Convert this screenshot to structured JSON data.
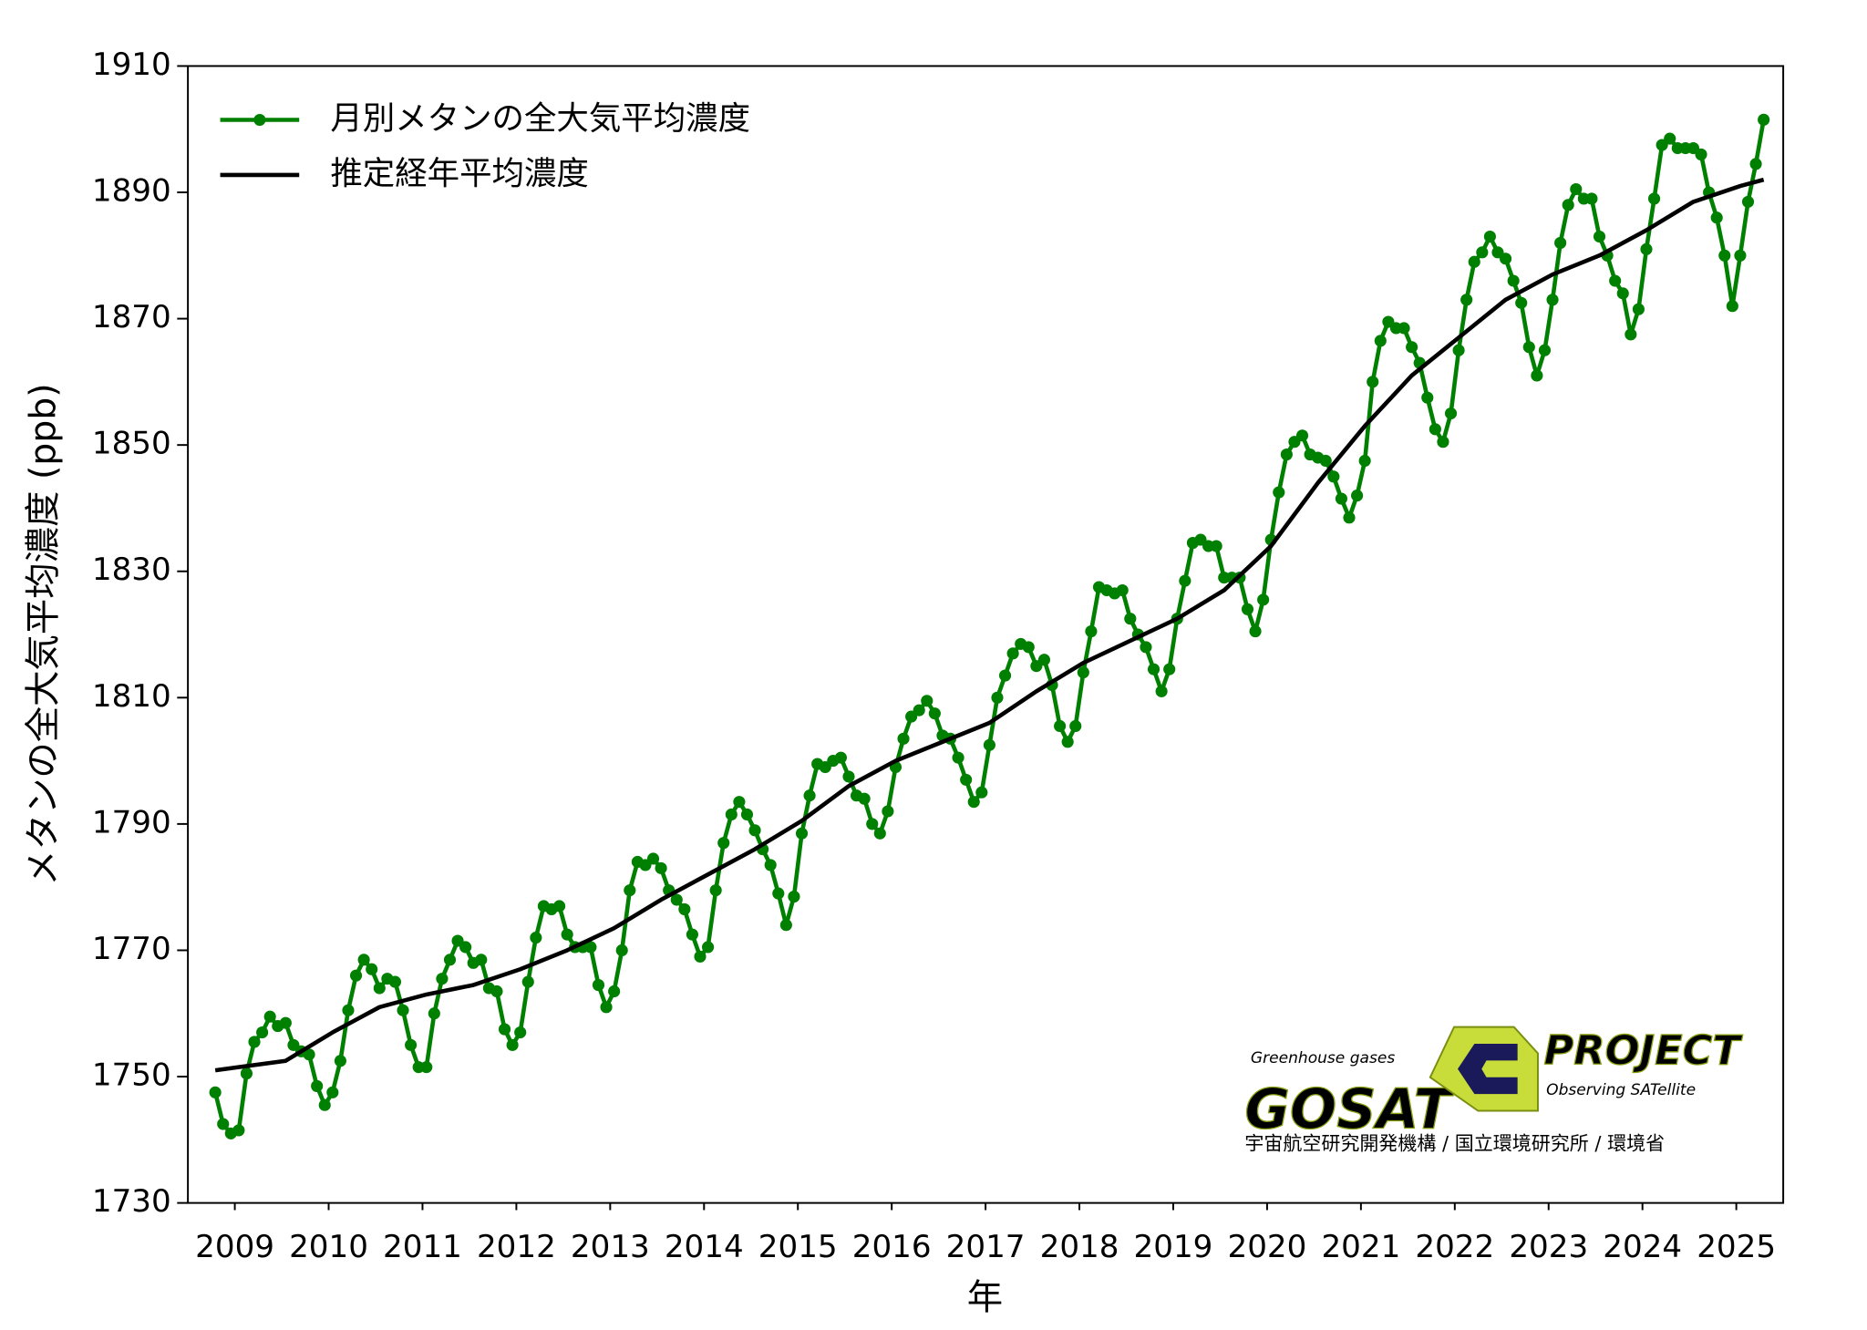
{
  "chart_data": {
    "type": "line",
    "y_label": "メタンの全大気平均濃度 (ppb)",
    "x_label": "年",
    "xlim": [
      2009,
      2026
    ],
    "xticks": [
      {
        "value": 2009.5,
        "label": "2009"
      },
      {
        "value": 2010.5,
        "label": "2010"
      },
      {
        "value": 2011.5,
        "label": "2011"
      },
      {
        "value": 2012.5,
        "label": "2012"
      },
      {
        "value": 2013.5,
        "label": "2013"
      },
      {
        "value": 2014.5,
        "label": "2014"
      },
      {
        "value": 2015.5,
        "label": "2015"
      },
      {
        "value": 2016.5,
        "label": "2016"
      },
      {
        "value": 2017.5,
        "label": "2017"
      },
      {
        "value": 2018.5,
        "label": "2018"
      },
      {
        "value": 2019.5,
        "label": "2019"
      },
      {
        "value": 2020.5,
        "label": "2020"
      },
      {
        "value": 2021.5,
        "label": "2021"
      },
      {
        "value": 2022.5,
        "label": "2022"
      },
      {
        "value": 2023.5,
        "label": "2023"
      },
      {
        "value": 2024.5,
        "label": "2024"
      },
      {
        "value": 2025.5,
        "label": "2025"
      }
    ],
    "ylim": [
      1730,
      1910
    ],
    "yticks": [
      1730,
      1750,
      1770,
      1790,
      1810,
      1830,
      1850,
      1870,
      1890,
      1910
    ],
    "grid": false,
    "legend": "upper left",
    "series": [
      {
        "name": "月別メタンの全大気平均濃度",
        "color": "#008000",
        "markers": true,
        "x": [
          "2009-04",
          "2009-05",
          "2009-06",
          "2009-07",
          "2009-08",
          "2009-09",
          "2009-10",
          "2009-11",
          "2009-12",
          "2010-01",
          "2010-02",
          "2010-03",
          "2010-04",
          "2010-05",
          "2010-06",
          "2010-07",
          "2010-08",
          "2010-09",
          "2010-10",
          "2010-11",
          "2010-12",
          "2011-01",
          "2011-02",
          "2011-03",
          "2011-04",
          "2011-05",
          "2011-06",
          "2011-07",
          "2011-08",
          "2011-09",
          "2011-10",
          "2011-11",
          "2011-12",
          "2012-01",
          "2012-02",
          "2012-03",
          "2012-04",
          "2012-05",
          "2012-06",
          "2012-07",
          "2012-08",
          "2012-09",
          "2012-10",
          "2012-11",
          "2012-12",
          "2013-01",
          "2013-02",
          "2013-03",
          "2013-04",
          "2013-05",
          "2013-06",
          "2013-07",
          "2013-08",
          "2013-09",
          "2013-10",
          "2013-11",
          "2013-12",
          "2014-01",
          "2014-02",
          "2014-03",
          "2014-04",
          "2014-05",
          "2014-06",
          "2014-07",
          "2014-08",
          "2014-09",
          "2014-10",
          "2014-11",
          "2014-12",
          "2015-01",
          "2015-02",
          "2015-03",
          "2015-04",
          "2015-05",
          "2015-06",
          "2015-07",
          "2015-08",
          "2015-09",
          "2015-10",
          "2015-11",
          "2015-12",
          "2016-01",
          "2016-02",
          "2016-03",
          "2016-04",
          "2016-05",
          "2016-06",
          "2016-07",
          "2016-08",
          "2016-09",
          "2016-10",
          "2016-11",
          "2016-12",
          "2017-01",
          "2017-02",
          "2017-03",
          "2017-04",
          "2017-05",
          "2017-06",
          "2017-07",
          "2017-08",
          "2017-09",
          "2017-10",
          "2017-11",
          "2017-12",
          "2018-01",
          "2018-02",
          "2018-03",
          "2018-04",
          "2018-05",
          "2018-06",
          "2018-07",
          "2018-08",
          "2018-09",
          "2018-10",
          "2018-11",
          "2018-12",
          "2019-01",
          "2019-02",
          "2019-03",
          "2019-04",
          "2019-05",
          "2019-06",
          "2019-07",
          "2019-08",
          "2019-09",
          "2019-10",
          "2019-11",
          "2019-12",
          "2020-01",
          "2020-02",
          "2020-03",
          "2020-04",
          "2020-05",
          "2020-06",
          "2020-07",
          "2020-08",
          "2020-09",
          "2020-10",
          "2020-11",
          "2020-12",
          "2021-01",
          "2021-02",
          "2021-03",
          "2021-04",
          "2021-05",
          "2021-06",
          "2021-07",
          "2021-08",
          "2021-09",
          "2021-10",
          "2021-11",
          "2021-12",
          "2022-01",
          "2022-02",
          "2022-03",
          "2022-04",
          "2022-05",
          "2022-06",
          "2022-07",
          "2022-08",
          "2022-09",
          "2022-10",
          "2022-11",
          "2022-12",
          "2023-01",
          "2023-02",
          "2023-03",
          "2023-04",
          "2023-05",
          "2023-06",
          "2023-07",
          "2023-08",
          "2023-09",
          "2023-10",
          "2023-11",
          "2023-12",
          "2024-01",
          "2024-02",
          "2024-03",
          "2024-04",
          "2024-05",
          "2024-06",
          "2024-07",
          "2024-08",
          "2024-09",
          "2024-10",
          "2024-11",
          "2024-12",
          "2025-01",
          "2025-02",
          "2025-03",
          "2025-04",
          "2025-05",
          "2025-06",
          "2025-07",
          "2025-08",
          "2025-09",
          "2025-10"
        ],
        "values": [
          1747.5,
          1742.5,
          1741,
          1741.5,
          1750.5,
          1755.5,
          1757,
          1759.5,
          1758,
          1758.5,
          1755,
          1754,
          1753.5,
          1748.5,
          1745.5,
          1747.5,
          1752.5,
          1760.5,
          1766,
          1768.5,
          1767,
          1764,
          1765.5,
          1765,
          1760.5,
          1755,
          1751.5,
          1751.5,
          1760,
          1765.5,
          1768.5,
          1771.5,
          1770.5,
          1768,
          1768.5,
          1764,
          1763.5,
          1757.5,
          1755,
          1757,
          1765,
          1772,
          1777,
          1776.5,
          1777,
          1772.5,
          1770.5,
          1770.5,
          1770.5,
          1764.5,
          1761,
          1763.5,
          1770,
          1779.5,
          1784,
          1783.5,
          1784.5,
          1783,
          1779.5,
          1778,
          1776.5,
          1772.5,
          1769,
          1770.5,
          1779.5,
          1787,
          1791.5,
          1793.5,
          1791.5,
          1789,
          1786,
          1783.5,
          1779,
          1774,
          1778.5,
          1788.5,
          1794.5,
          1799.5,
          1799,
          1800,
          1800.5,
          1797.5,
          1794.5,
          1794,
          1790,
          1788.5,
          1792,
          1799,
          1803.5,
          1807,
          1808,
          1809.5,
          1807.5,
          1804,
          1803.5,
          1800.5,
          1797,
          1793.5,
          1795,
          1802.5,
          1810,
          1813.5,
          1817,
          1818.5,
          1818,
          1815,
          1816,
          1812,
          1805.5,
          1803,
          1805.5,
          1814,
          1820.5,
          1827.5,
          1827,
          1826.5,
          1827,
          1822.5,
          1820,
          1818,
          1814.5,
          1811,
          1814.5,
          1822.5,
          1828.5,
          1834.5,
          1835,
          1834,
          1834,
          1829,
          1829,
          1829,
          1824,
          1820.5,
          1825.5,
          1835,
          1842.5,
          1848.5,
          1850.5,
          1851.5,
          1848.5,
          1848,
          1847.5,
          1845,
          1841.5,
          1838.5,
          1842,
          1847.5,
          1860,
          1866.5,
          1869.5,
          1868.5,
          1868.5,
          1865.5,
          1863,
          1857.5,
          1852.5,
          1850.5,
          1855,
          1865,
          1873,
          1879,
          1880.5,
          1883,
          1880.5,
          1879.5,
          1876,
          1872.5,
          1865.5,
          1861,
          1865,
          1873,
          1882,
          1888,
          1890.5,
          1889,
          1889,
          1883,
          1880,
          1876,
          1874,
          1867.5,
          1871.5,
          1881,
          1889,
          1897.5,
          1898.5,
          1897,
          1897,
          1897,
          1896,
          1890,
          1886,
          1880,
          1872,
          1880,
          1888.5,
          1894.5,
          1901.5
        ]
      },
      {
        "name": "推定経年平均濃度",
        "color": "#000000",
        "markers": false,
        "x": [
          "2009-04",
          "2010-01",
          "2010-07",
          "2011-01",
          "2011-07",
          "2012-01",
          "2012-07",
          "2013-01",
          "2013-07",
          "2014-01",
          "2014-07",
          "2015-01",
          "2015-07",
          "2016-01",
          "2016-07",
          "2017-01",
          "2017-07",
          "2018-01",
          "2018-07",
          "2019-01",
          "2019-07",
          "2020-01",
          "2020-07",
          "2021-01",
          "2021-07",
          "2022-01",
          "2022-07",
          "2023-01",
          "2023-07",
          "2024-01",
          "2024-07",
          "2025-01",
          "2025-07",
          "2025-10"
        ],
        "values": [
          1751,
          1752.5,
          1757,
          1761,
          1763,
          1764.5,
          1767,
          1770,
          1773.5,
          1778,
          1782,
          1786,
          1790.5,
          1796,
          1800,
          1803,
          1806,
          1811,
          1815.5,
          1819,
          1822.5,
          1827,
          1834,
          1844,
          1853,
          1861,
          1867,
          1873,
          1877,
          1880,
          1884,
          1888.5,
          1891,
          1892
        ]
      }
    ]
  },
  "logo": {
    "tagline": "Greenhouse gases",
    "name": "GOSAT",
    "project": "PROJECT",
    "subtitle": "Observing SATellite",
    "agencies": "宇宙航空研究開発機構 / 国立環境研究所 / 環境省"
  }
}
